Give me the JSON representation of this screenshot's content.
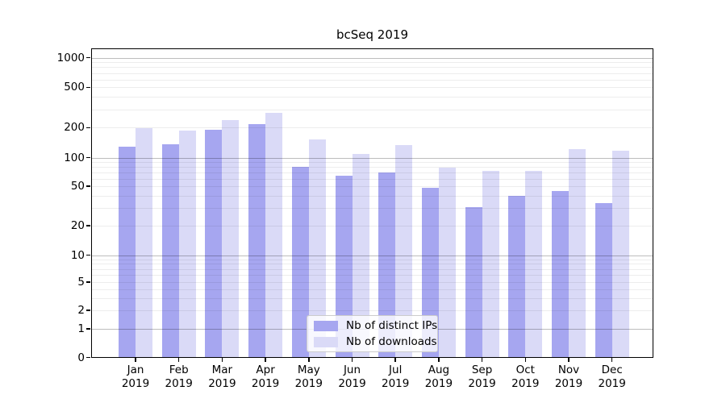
{
  "title": "bcSeq 2019",
  "y_axis": {
    "tick_values": [
      0,
      1,
      2,
      5,
      10,
      20,
      50,
      100,
      200,
      500,
      1000
    ],
    "scale": "symlog"
  },
  "x_axis": {
    "months": [
      "Jan",
      "Feb",
      "Mar",
      "Apr",
      "May",
      "Jun",
      "Jul",
      "Aug",
      "Sep",
      "Oct",
      "Nov",
      "Dec"
    ],
    "year": "2019"
  },
  "legend": {
    "items": [
      {
        "label": "Nb of distinct IPs"
      },
      {
        "label": "Nb of downloads"
      }
    ]
  },
  "colors": {
    "distinct_ips_bar": "#a6a6f0",
    "downloads_bar": "#dadaf7",
    "grid_major": "rgba(0,0,0,0.26)",
    "grid_minor": "rgba(0,0,0,0.07)",
    "legend_border": "#cccccc",
    "axis": "#000000"
  },
  "chart_data": {
    "type": "bar",
    "title": "bcSeq 2019",
    "categories": [
      "Jan 2019",
      "Feb 2019",
      "Mar 2019",
      "Apr 2019",
      "May 2019",
      "Jun 2019",
      "Jul 2019",
      "Aug 2019",
      "Sep 2019",
      "Oct 2019",
      "Nov 2019",
      "Dec 2019"
    ],
    "series": [
      {
        "name": "Nb of distinct IPs",
        "color": "#a6a6f0",
        "values": [
          130,
          137,
          192,
          218,
          80,
          65,
          70,
          48,
          31,
          40,
          45,
          34
        ]
      },
      {
        "name": "Nb of downloads",
        "color": "#dadaf7",
        "values": [
          199,
          187,
          235,
          280,
          151,
          109,
          133,
          79,
          73,
          72,
          123,
          117
        ]
      }
    ],
    "yscale": "symlog",
    "y_ticks": [
      0,
      1,
      2,
      5,
      10,
      20,
      50,
      100,
      200,
      500,
      1000
    ],
    "ylim": [
      0,
      1000
    ],
    "xlabel": "",
    "ylabel": "",
    "grid": true,
    "legend_position": "bottom-center"
  }
}
